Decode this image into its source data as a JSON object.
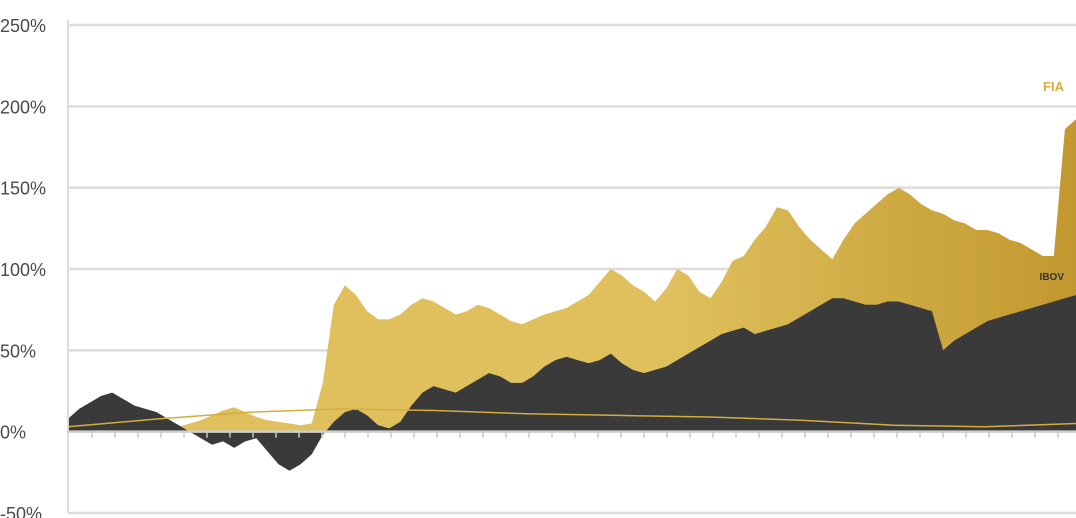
{
  "chart_data": {
    "type": "area",
    "title": "",
    "xlabel": "",
    "ylabel": "",
    "ylim": [
      -50,
      250
    ],
    "y_ticks": [
      {
        "value": 250,
        "label": "250%"
      },
      {
        "value": 200,
        "label": "200%"
      },
      {
        "value": 150,
        "label": "150%"
      },
      {
        "value": 100,
        "label": "100%"
      },
      {
        "value": 50,
        "label": "50%"
      },
      {
        "value": 0,
        "label": "0%"
      },
      {
        "value": -50,
        "label": "-50%"
      }
    ],
    "grid": true,
    "x_tick_count": 43,
    "series": [
      {
        "name": "FIA",
        "color": "#dfc05c",
        "color_end": "#c1982f",
        "values": [
          3,
          8,
          12,
          14,
          13,
          11,
          10,
          9,
          7,
          4,
          3,
          5,
          7,
          10,
          13,
          15,
          12,
          9,
          7,
          6,
          5,
          4,
          5,
          30,
          78,
          90,
          84,
          74,
          69,
          69,
          72,
          78,
          82,
          80,
          76,
          72,
          74,
          78,
          76,
          72,
          68,
          66,
          69,
          72,
          74,
          76,
          80,
          84,
          92,
          100,
          96,
          90,
          86,
          80,
          88,
          100,
          96,
          86,
          82,
          92,
          105,
          108,
          118,
          126,
          138,
          136,
          126,
          118,
          112,
          106,
          118,
          128,
          134,
          140,
          146,
          150,
          146,
          140,
          136,
          134,
          130,
          128,
          124,
          124,
          122,
          118,
          116,
          112,
          108,
          108,
          186,
          192
        ]
      },
      {
        "name": "IBOV",
        "color": "#3a3a3a",
        "values": [
          8,
          14,
          18,
          22,
          24,
          20,
          16,
          14,
          12,
          8,
          4,
          0,
          -4,
          -8,
          -6,
          -10,
          -6,
          -4,
          -12,
          -20,
          -24,
          -20,
          -14,
          -2,
          6,
          12,
          14,
          10,
          4,
          2,
          6,
          16,
          24,
          28,
          26,
          24,
          28,
          32,
          36,
          34,
          30,
          30,
          34,
          40,
          44,
          46,
          44,
          42,
          44,
          48,
          42,
          38,
          36,
          38,
          40,
          44,
          48,
          52,
          56,
          60,
          62,
          64,
          60,
          62,
          64,
          66,
          70,
          74,
          78,
          82,
          82,
          80,
          78,
          78,
          80,
          80,
          78,
          76,
          74,
          50,
          56,
          60,
          64,
          68,
          70,
          72,
          74,
          76,
          78,
          80,
          82,
          84
        ]
      }
    ]
  }
}
